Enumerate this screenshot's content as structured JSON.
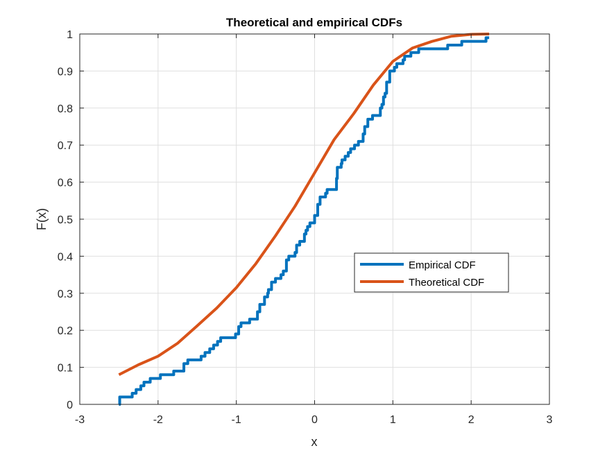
{
  "chart_data": {
    "type": "line",
    "title": "Theoretical and empirical CDFs",
    "xlabel": "x",
    "ylabel": "F(x)",
    "xlim": [
      -3,
      3
    ],
    "ylim": [
      0,
      1
    ],
    "xticks": [
      -3,
      -2,
      -1,
      0,
      1,
      2,
      3
    ],
    "yticks": [
      0,
      0.1,
      0.2,
      0.3,
      0.4,
      0.5,
      0.6,
      0.7,
      0.8,
      0.9,
      1
    ],
    "xtick_labels": [
      "-3",
      "-2",
      "-1",
      "0",
      "1",
      "2",
      "3"
    ],
    "ytick_labels": [
      "0",
      "0.1",
      "0.2",
      "0.3",
      "0.4",
      "0.5",
      "0.6",
      "0.7",
      "0.8",
      "0.9",
      "1"
    ],
    "grid": true,
    "legend_position": "center-right",
    "series": [
      {
        "name": "Empirical CDF",
        "color": "#0072BD",
        "style": "stairs",
        "x": [
          -2.5,
          -2.49,
          -2.33,
          -2.28,
          -2.22,
          -2.18,
          -2.1,
          -1.97,
          -1.8,
          -1.67,
          -1.62,
          -1.55,
          -1.45,
          -1.4,
          -1.34,
          -1.29,
          -1.24,
          -1.2,
          -1.01,
          -0.97,
          -0.94,
          -0.9,
          -0.83,
          -0.73,
          -0.7,
          -0.64,
          -0.6,
          -0.59,
          -0.55,
          -0.5,
          -0.48,
          -0.43,
          -0.4,
          -0.36,
          -0.33,
          -0.25,
          -0.23,
          -0.19,
          -0.13,
          -0.11,
          -0.09,
          -0.06,
          0.0,
          0.04,
          0.07,
          0.14,
          0.16,
          0.28,
          0.29,
          0.34,
          0.35,
          0.39,
          0.43,
          0.46,
          0.51,
          0.56,
          0.62,
          0.64,
          0.68,
          0.74,
          0.84,
          0.86,
          0.88,
          0.9,
          0.92,
          0.96,
          1.02,
          1.05,
          1.13,
          1.15,
          1.23,
          1.27,
          1.33,
          1.36,
          1.42,
          1.7,
          1.88,
          2.19,
          2.23
        ],
        "y": [
          0.0,
          0.02,
          0.03,
          0.04,
          0.05,
          0.06,
          0.07,
          0.08,
          0.09,
          0.11,
          0.12,
          0.12,
          0.13,
          0.14,
          0.15,
          0.16,
          0.17,
          0.18,
          0.19,
          0.21,
          0.22,
          0.22,
          0.23,
          0.25,
          0.27,
          0.29,
          0.3,
          0.31,
          0.33,
          0.34,
          0.34,
          0.35,
          0.36,
          0.39,
          0.4,
          0.41,
          0.43,
          0.44,
          0.46,
          0.47,
          0.48,
          0.49,
          0.51,
          0.54,
          0.56,
          0.57,
          0.58,
          0.61,
          0.64,
          0.65,
          0.66,
          0.67,
          0.68,
          0.69,
          0.7,
          0.71,
          0.73,
          0.75,
          0.77,
          0.78,
          0.8,
          0.81,
          0.83,
          0.84,
          0.87,
          0.9,
          0.91,
          0.92,
          0.93,
          0.94,
          0.95,
          0.95,
          0.96,
          0.96,
          0.96,
          0.97,
          0.98,
          0.99,
          0.99
        ]
      },
      {
        "name": "Theoretical CDF",
        "color": "#D95319",
        "style": "line",
        "x": [
          -2.5,
          -2.25,
          -2.0,
          -1.75,
          -1.5,
          -1.25,
          -1.0,
          -0.75,
          -0.5,
          -0.25,
          0.0,
          0.25,
          0.5,
          0.75,
          1.0,
          1.25,
          1.5,
          1.75,
          2.0,
          2.23
        ],
        "y": [
          0.08,
          0.107,
          0.13,
          0.165,
          0.212,
          0.26,
          0.315,
          0.38,
          0.455,
          0.535,
          0.625,
          0.715,
          0.785,
          0.862,
          0.926,
          0.962,
          0.98,
          0.994,
          0.999,
          1.0
        ]
      }
    ]
  }
}
